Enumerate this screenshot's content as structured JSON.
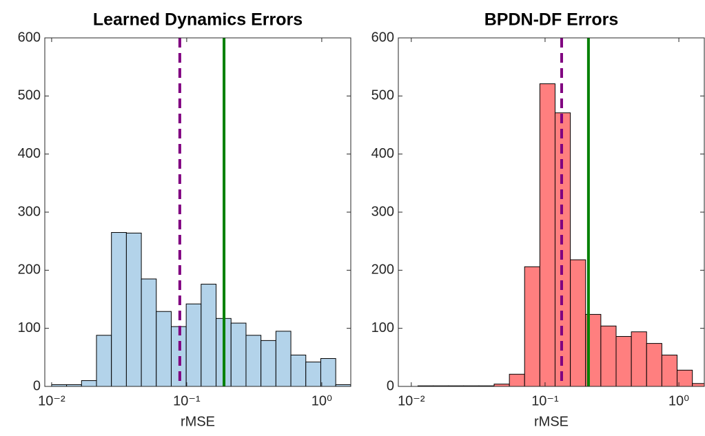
{
  "chart_data": [
    {
      "type": "histogram",
      "title": "Learned Dynamics Errors",
      "xlabel": "rMSE",
      "log_x": true,
      "color": "#b3d3ea",
      "bins": [
        0.01,
        0.0129,
        0.01665,
        0.02148,
        0.02772,
        0.03577,
        0.04615,
        0.05955,
        0.07684,
        0.09915,
        0.1279,
        0.1651,
        0.213,
        0.2749,
        0.3547,
        0.4577,
        0.5906,
        0.762,
        0.9833,
        1.269,
        1.637
      ],
      "values": [
        3,
        3,
        10,
        88,
        265,
        264,
        185,
        129,
        103,
        142,
        176,
        117,
        109,
        88,
        79,
        95,
        54,
        42,
        48,
        3
      ],
      "xlim": [
        0.0089,
        1.64
      ],
      "ylim": [
        0,
        600
      ],
      "xticks": [
        {
          "value": 0.01,
          "label": "10⁻²"
        },
        {
          "value": 0.1,
          "label": "10⁻¹"
        },
        {
          "value": 1,
          "label": "10⁰"
        }
      ],
      "yticks": [
        0,
        100,
        200,
        300,
        400,
        500,
        600
      ],
      "vlines": [
        {
          "x": 0.0889,
          "color": "#800080",
          "style": "dashed"
        },
        {
          "x": 0.189,
          "color": "#008000",
          "style": "solid"
        }
      ]
    },
    {
      "type": "histogram",
      "title": "BPDN-DF Errors",
      "xlabel": "rMSE",
      "log_x": true,
      "color": "#ff7f7f",
      "bins": [
        0.0112,
        0.0146,
        0.019,
        0.0246,
        0.032,
        0.0416,
        0.0541,
        0.0703,
        0.0914,
        0.1188,
        0.1545,
        0.2009,
        0.2612,
        0.3396,
        0.4415,
        0.5741,
        0.7464,
        0.9705,
        1.262,
        1.641
      ],
      "values": [
        1,
        1,
        1,
        1,
        1,
        4,
        21,
        206,
        521,
        471,
        218,
        124,
        104,
        86,
        94,
        74,
        54,
        28,
        5
      ],
      "xlim": [
        0.008,
        1.55
      ],
      "ylim": [
        0,
        600
      ],
      "xticks": [
        {
          "value": 0.01,
          "label": "10⁻²"
        },
        {
          "value": 0.1,
          "label": "10⁻¹"
        },
        {
          "value": 1,
          "label": "10⁰"
        }
      ],
      "yticks": [
        0,
        100,
        200,
        300,
        400,
        500,
        600
      ],
      "vlines": [
        {
          "x": 0.133,
          "color": "#800080",
          "style": "dashed"
        },
        {
          "x": 0.211,
          "color": "#008000",
          "style": "solid"
        }
      ]
    }
  ]
}
